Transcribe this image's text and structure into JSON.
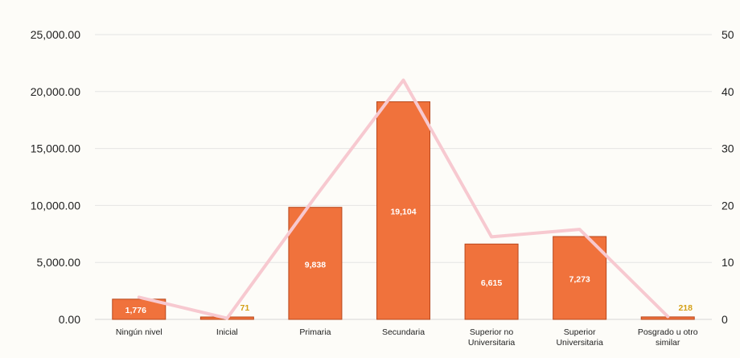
{
  "chart_data": {
    "type": "bar",
    "categories": [
      [
        "Ningún nivel"
      ],
      [
        "Inicial"
      ],
      [
        "Primaria"
      ],
      [
        "Secundaria"
      ],
      [
        "Superior no",
        "Universitaria"
      ],
      [
        "Superior",
        "Universitaria"
      ],
      [
        "Posgrado u otro",
        "similar"
      ]
    ],
    "series": [
      {
        "type": "bar",
        "axis": "left",
        "values": [
          1776,
          71,
          9838,
          19104,
          6615,
          7273,
          218
        ],
        "data_labels": [
          "1,776",
          "71",
          "9,838",
          "19,104",
          "6,615",
          "7,273",
          "218"
        ],
        "color": "#f0723c"
      },
      {
        "type": "line",
        "axis": "right",
        "values": [
          3.9,
          0.2,
          21.5,
          42,
          14.5,
          15.8,
          0.5
        ],
        "color": "#f7c9d0"
      }
    ],
    "y_left": {
      "range": [
        0,
        25000
      ],
      "ticks": [
        0,
        5000,
        10000,
        15000,
        20000,
        25000
      ],
      "tick_labels": [
        "0.00",
        "5,000.00",
        "10,000.00",
        "15,000.00",
        "20,000.00",
        "25,000.00"
      ]
    },
    "y_right": {
      "range": [
        0,
        50
      ],
      "ticks": [
        0,
        10,
        20,
        30,
        40,
        50
      ],
      "tick_labels": [
        "0",
        "10",
        "20",
        "30",
        "40",
        "50"
      ]
    },
    "grid": true,
    "legend": false,
    "colors": {
      "bar_fill": "#f0723c",
      "bar_stroke": "#b8481d",
      "line": "#f7c9d0",
      "label_inside": "#ffffff",
      "label_outside": "#d4a017",
      "grid": "#e4e4e4"
    }
  }
}
